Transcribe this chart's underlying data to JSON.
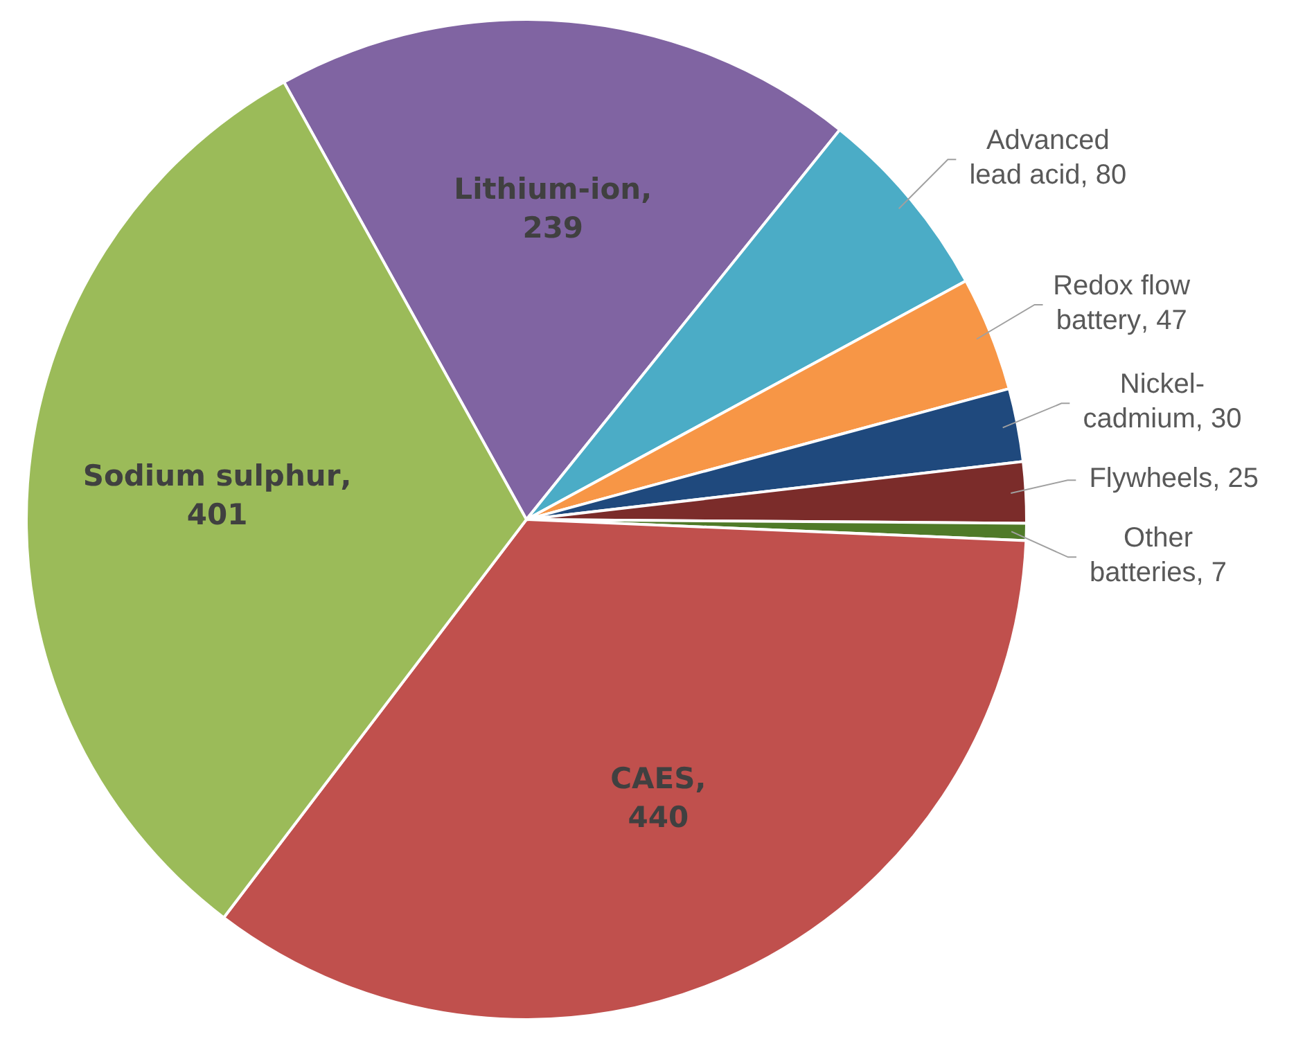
{
  "chart_data": {
    "type": "pie",
    "categories": [
      "Lithium-ion",
      "Advanced lead acid",
      "Redox flow battery",
      "Nickel-cadmium",
      "Flywheels",
      "Other batteries",
      "CAES",
      "Sodium sulphur"
    ],
    "values": [
      239,
      80,
      47,
      30,
      25,
      7,
      440,
      401
    ],
    "value_labels": [
      ", 239",
      ", 80",
      ", 47",
      ", 30",
      ", 25",
      ", 7",
      ", 440",
      ", 401"
    ],
    "colors": [
      "#8064a2",
      "#4bacc6",
      "#f79646",
      "#1f497d",
      "#7b2c2a",
      "#4f7a28",
      "#c0504d",
      "#9bbb59"
    ],
    "legend": false
  }
}
